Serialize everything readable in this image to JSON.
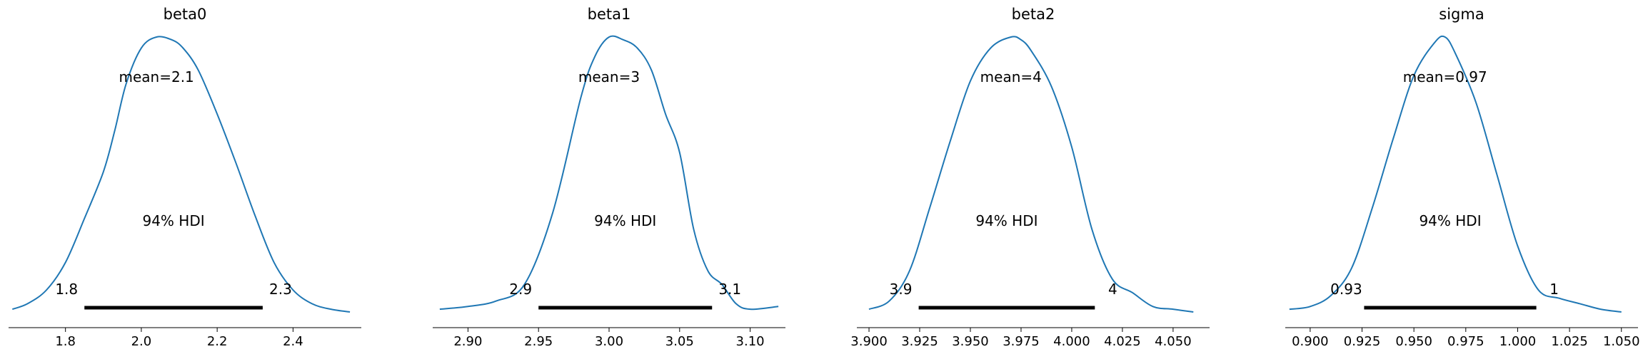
{
  "chart_data": [
    {
      "type": "density",
      "title": "beta0",
      "mean_label": "mean=2.1",
      "hdi_label": "94% HDI",
      "hdi": {
        "low": 1.85,
        "high": 2.32,
        "low_label": "1.8",
        "high_label": "2.3"
      },
      "xlim": [
        1.65,
        2.58
      ],
      "xticks": [
        1.8,
        2.0,
        2.2,
        2.4
      ],
      "xtick_labels": [
        "1.8",
        "2.0",
        "2.2",
        "2.4"
      ],
      "x": [
        1.66,
        1.7,
        1.75,
        1.8,
        1.85,
        1.9,
        1.93,
        1.96,
        2.0,
        2.04,
        2.08,
        2.11,
        2.15,
        2.2,
        2.25,
        2.3,
        2.35,
        2.4,
        2.45,
        2.5,
        2.55
      ],
      "y": [
        0.01,
        0.03,
        0.08,
        0.18,
        0.34,
        0.51,
        0.66,
        0.83,
        0.96,
        1.0,
        0.99,
        0.96,
        0.88,
        0.72,
        0.54,
        0.35,
        0.18,
        0.08,
        0.03,
        0.01,
        0.0
      ]
    },
    {
      "type": "density",
      "title": "beta1",
      "mean_label": "mean=3",
      "hdi_label": "94% HDI",
      "hdi": {
        "low": 2.95,
        "high": 3.073,
        "low_label": "2.9",
        "high_label": "3.1"
      },
      "xlim": [
        2.875,
        3.125
      ],
      "xticks": [
        2.9,
        2.95,
        3.0,
        3.05,
        3.1
      ],
      "xtick_labels": [
        "2.90",
        "2.95",
        "3.00",
        "3.05",
        "3.10"
      ],
      "x": [
        2.88,
        2.9,
        2.92,
        2.94,
        2.96,
        2.98,
        2.99,
        3.0,
        3.01,
        3.02,
        3.03,
        3.04,
        3.05,
        3.06,
        3.07,
        3.08,
        3.09,
        3.1,
        3.12
      ],
      "y": [
        0.01,
        0.02,
        0.04,
        0.1,
        0.36,
        0.78,
        0.93,
        1.0,
        0.99,
        0.96,
        0.88,
        0.72,
        0.58,
        0.3,
        0.15,
        0.1,
        0.03,
        0.01,
        0.02
      ]
    },
    {
      "type": "density",
      "title": "beta2",
      "mean_label": "mean=4",
      "hdi_label": "94% HDI",
      "hdi": {
        "low": 3.9245,
        "high": 4.0114,
        "low_label": "3.9",
        "high_label": "4"
      },
      "xlim": [
        3.894,
        4.068
      ],
      "xticks": [
        3.9,
        3.925,
        3.95,
        3.975,
        4.0,
        4.025,
        4.05
      ],
      "xtick_labels": [
        "3.900",
        "3.925",
        "3.950",
        "3.975",
        "4.000",
        "4.025",
        "4.050"
      ],
      "x": [
        3.9,
        3.91,
        3.92,
        3.93,
        3.94,
        3.95,
        3.96,
        3.97,
        3.975,
        3.98,
        3.99,
        4.0,
        4.01,
        4.02,
        4.03,
        4.04,
        4.05,
        4.06
      ],
      "y": [
        0.01,
        0.04,
        0.15,
        0.38,
        0.62,
        0.84,
        0.96,
        1.0,
        0.99,
        0.95,
        0.82,
        0.6,
        0.3,
        0.12,
        0.07,
        0.02,
        0.01,
        0.0
      ]
    },
    {
      "type": "density",
      "title": "sigma",
      "mean_label": "mean=0.97",
      "hdi_label": "94% HDI",
      "hdi": {
        "low": 0.926,
        "high": 1.009,
        "low_label": "0.93",
        "high_label": "1"
      },
      "xlim": [
        0.888,
        1.058
      ],
      "xticks": [
        0.9,
        0.925,
        0.95,
        0.975,
        1.0,
        1.025,
        1.05
      ],
      "xtick_labels": [
        "0.900",
        "0.925",
        "0.950",
        "0.975",
        "1.000",
        "1.025",
        "1.050"
      ],
      "x": [
        0.89,
        0.9,
        0.91,
        0.92,
        0.93,
        0.94,
        0.95,
        0.96,
        0.965,
        0.97,
        0.98,
        0.99,
        1.0,
        1.01,
        1.02,
        1.03,
        1.04,
        1.05
      ],
      "y": [
        0.01,
        0.02,
        0.06,
        0.16,
        0.38,
        0.63,
        0.86,
        0.98,
        1.0,
        0.94,
        0.76,
        0.5,
        0.24,
        0.08,
        0.05,
        0.03,
        0.01,
        0.0
      ]
    }
  ]
}
